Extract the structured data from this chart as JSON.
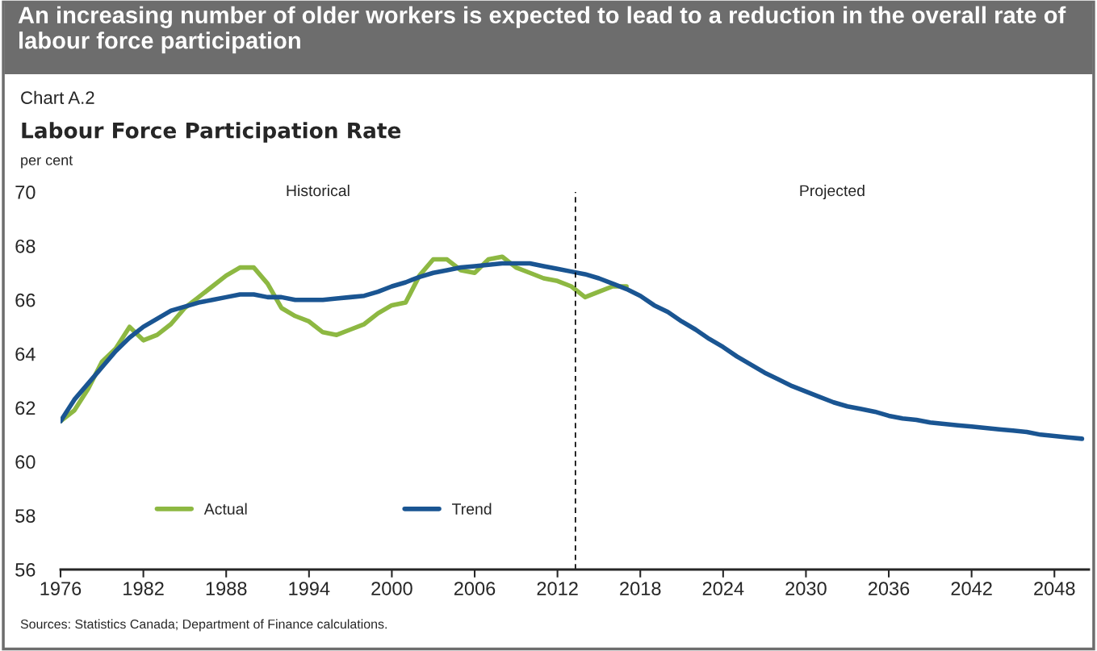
{
  "chart_data": {
    "type": "line",
    "title": "An increasing number of older workers is expected to lead to a reduction in the overall rate of labour force participation",
    "subtitle": "Labour Force Participation Rate",
    "ylabel": "per cent",
    "annotations": [
      "Chart A.2",
      "Historical",
      "Projected",
      "Sources: Statistics Canada; Department of Finance calculations."
    ],
    "series": [
      {
        "name": "Actual",
        "color": "#8db842",
        "x": [
          1976,
          1977,
          1978,
          1979,
          1980,
          1981,
          1982,
          1983,
          1984,
          1985,
          1986,
          1987,
          1988,
          1989,
          1990,
          1991,
          1992,
          1993,
          1994,
          1995,
          1996,
          1997,
          1998,
          1999,
          2000,
          2001,
          2002,
          2003,
          2004,
          2005,
          2006,
          2007,
          2008,
          2009,
          2010,
          2011,
          2012,
          2013,
          2014,
          2015,
          2016,
          2017
        ],
        "values": [
          61.5,
          61.9,
          62.7,
          63.7,
          64.2,
          65.0,
          64.5,
          64.7,
          65.1,
          65.7,
          66.1,
          66.5,
          66.9,
          67.2,
          67.2,
          66.6,
          65.7,
          65.4,
          65.2,
          64.8,
          64.7,
          64.9,
          65.1,
          65.5,
          65.8,
          65.9,
          66.9,
          67.5,
          67.5,
          67.1,
          67.0,
          67.5,
          67.6,
          67.2,
          67.0,
          66.8,
          66.7,
          66.5,
          66.1,
          66.3,
          66.5,
          66.5
        ]
      },
      {
        "name": "Trend",
        "color": "#1a5592",
        "x": [
          1976,
          1977,
          1978,
          1979,
          1980,
          1981,
          1982,
          1983,
          1984,
          1985,
          1986,
          1987,
          1988,
          1989,
          1990,
          1991,
          1992,
          1993,
          1994,
          1995,
          1996,
          1997,
          1998,
          1999,
          2000,
          2001,
          2002,
          2003,
          2004,
          2005,
          2006,
          2007,
          2008,
          2009,
          2010,
          2011,
          2012,
          2013,
          2014,
          2015,
          2016,
          2017,
          2018,
          2019,
          2020,
          2021,
          2022,
          2023,
          2024,
          2025,
          2026,
          2027,
          2028,
          2029,
          2030,
          2031,
          2032,
          2033,
          2034,
          2035,
          2036,
          2037,
          2038,
          2039,
          2040,
          2041,
          2042,
          2043,
          2044,
          2045,
          2046,
          2047,
          2048,
          2049,
          2050
        ],
        "values": [
          61.5,
          62.3,
          62.9,
          63.5,
          64.1,
          64.6,
          65.0,
          65.3,
          65.6,
          65.75,
          65.9,
          66.0,
          66.1,
          66.2,
          66.2,
          66.1,
          66.1,
          66.0,
          66.0,
          66.0,
          66.05,
          66.1,
          66.15,
          66.3,
          66.5,
          66.65,
          66.85,
          67.0,
          67.1,
          67.2,
          67.25,
          67.3,
          67.35,
          67.35,
          67.35,
          67.25,
          67.15,
          67.05,
          66.95,
          66.8,
          66.6,
          66.4,
          66.15,
          65.8,
          65.55,
          65.2,
          64.9,
          64.55,
          64.25,
          63.9,
          63.6,
          63.3,
          63.05,
          62.8,
          62.6,
          62.4,
          62.2,
          62.05,
          61.95,
          61.85,
          61.7,
          61.6,
          61.55,
          61.45,
          61.4,
          61.35,
          61.3,
          61.25,
          61.2,
          61.15,
          61.1,
          61.0,
          60.95,
          60.9,
          60.85
        ]
      }
    ],
    "xlim": [
      1976,
      2050.5
    ],
    "xticks": [
      1976,
      1982,
      1988,
      1994,
      2000,
      2006,
      2012,
      2018,
      2024,
      2030,
      2036,
      2042,
      2048
    ],
    "ylim": [
      56,
      70
    ],
    "yticks": [
      56,
      58,
      60,
      62,
      64,
      66,
      68,
      70
    ],
    "ref_lines": [
      {
        "axis": "x",
        "value": 2013.3,
        "label": null,
        "color": "#000000",
        "line_style": "dashed"
      }
    ],
    "grid": false,
    "legend": "bottom left",
    "marker": "none",
    "line_style": "solid"
  }
}
